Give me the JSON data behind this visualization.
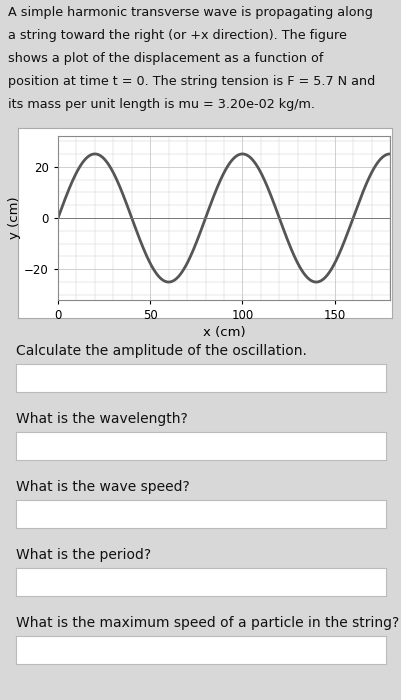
{
  "description_lines": [
    "A simple harmonic transverse wave is propagating along",
    "a string toward the right (or +x direction). The figure",
    "shows a plot of the displacement as a function of",
    "position at time t = 0. The string tension is F = 5.7 N and",
    "its mass per unit length is mu = 3.20e-02 kg/m."
  ],
  "xlabel": "x (cm)",
  "ylabel": "y (cm)",
  "yticks": [
    -20,
    0,
    20
  ],
  "xticks": [
    0,
    50,
    100,
    150
  ],
  "xlim": [
    0,
    180
  ],
  "ylim": [
    -32,
    32
  ],
  "amplitude": 25,
  "wavelength": 80,
  "wave_color": "#555555",
  "wave_linewidth": 2.0,
  "bg_color": "#d8d8d8",
  "plot_bg": "#ffffff",
  "plot_border_color": "#888888",
  "grid_color": "#c8c8c8",
  "questions": [
    "Calculate the amplitude of the oscillation.",
    "What is the wavelength?",
    "What is the wave speed?",
    "What is the period?",
    "What is the maximum speed of a particle in the string?"
  ],
  "box_fill": "#ffffff",
  "box_border": "#bbbbbb",
  "text_color": "#111111",
  "font_size_desc": 9.2,
  "font_size_q": 10.0,
  "font_size_axis_label": 9.5,
  "font_size_tick": 8.5
}
